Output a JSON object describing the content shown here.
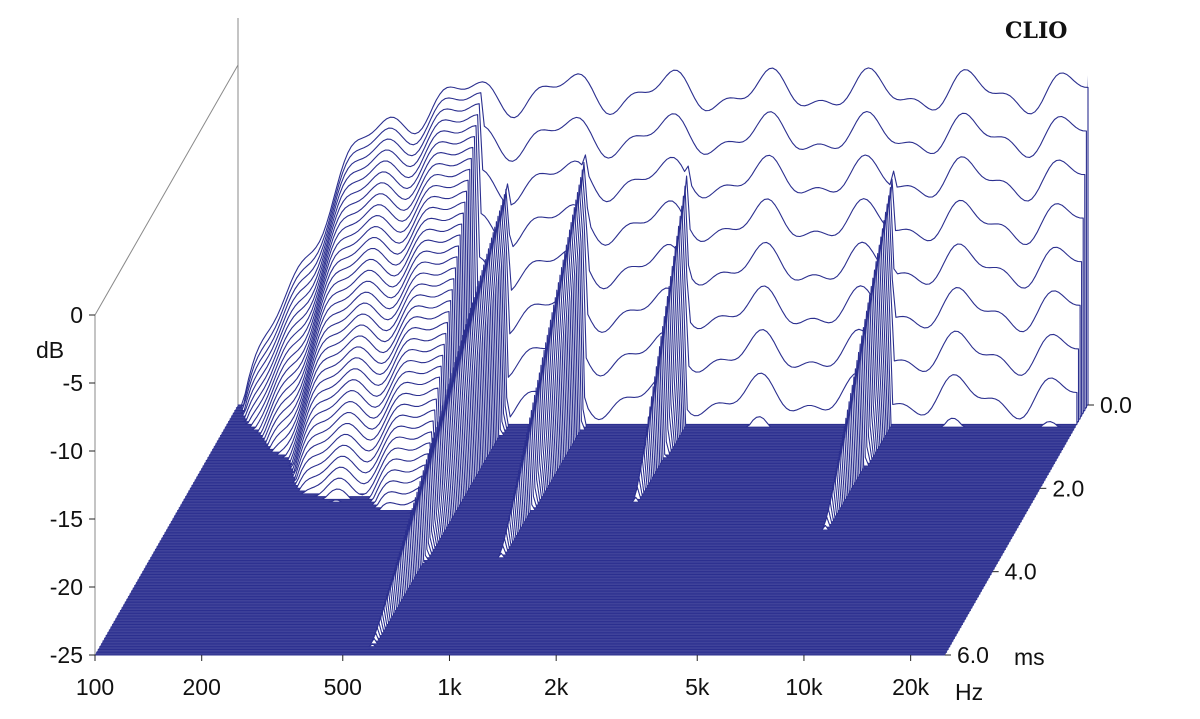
{
  "chart_data": {
    "type": "waterfall",
    "brand": "CLIO",
    "y_axis": {
      "label": "dB",
      "ticks": [
        "0",
        "-5",
        "-10",
        "-15",
        "-20",
        "-25"
      ],
      "tick_values": [
        0,
        -5,
        -10,
        -15,
        -20,
        -25
      ],
      "range": [
        -25,
        0
      ]
    },
    "x_axis": {
      "unit": "Hz",
      "scale": "log",
      "ticks": [
        "100",
        "200",
        "500",
        "1k",
        "2k",
        "5k",
        "10k",
        "20k"
      ],
      "tick_values": [
        100,
        200,
        500,
        1000,
        2000,
        5000,
        10000,
        20000
      ],
      "range": [
        100,
        25000
      ]
    },
    "z_axis": {
      "unit": "ms",
      "ticks": [
        "0.0",
        "2.0",
        "4.0",
        "6.0"
      ],
      "tick_values": [
        0,
        2,
        4,
        6
      ],
      "range": [
        0,
        6
      ]
    },
    "line_color": "#2b2f8f",
    "slices": 90
  }
}
